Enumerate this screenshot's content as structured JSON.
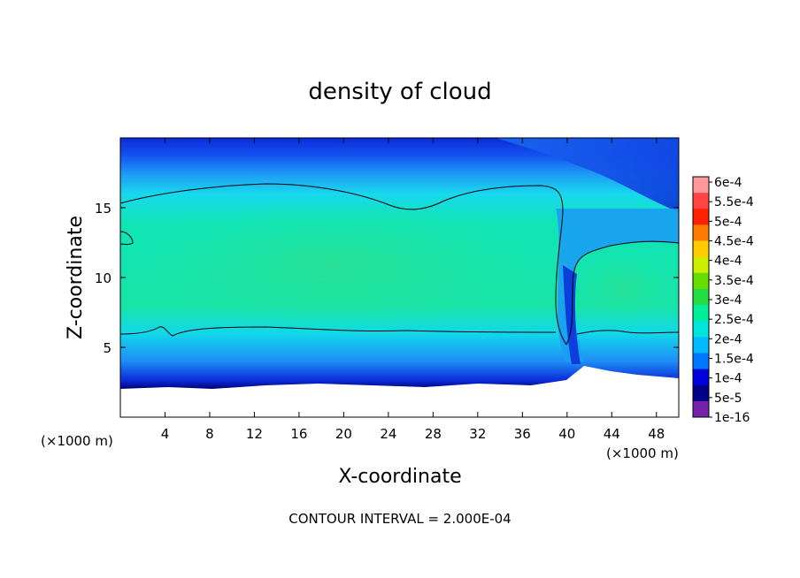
{
  "chart_data": {
    "type": "heatmap",
    "title": "density of cloud",
    "xlabel": "X-coordinate",
    "ylabel": "Z-coordinate",
    "x_unit": "(×1000 m)",
    "z_unit": "(×1000 m)",
    "xlim": [
      0,
      50
    ],
    "ylim": [
      0,
      20
    ],
    "x_ticks": [
      4,
      8,
      12,
      16,
      20,
      24,
      28,
      32,
      36,
      40,
      44,
      48
    ],
    "y_ticks": [
      5,
      10,
      15
    ],
    "contour_interval_text": "CONTOUR INTERVAL = 2.000E-04",
    "colorbar": {
      "labels": [
        "6e-4",
        "5.5e-4",
        "5e-4",
        "4.5e-4",
        "4e-4",
        "3.5e-4",
        "3e-4",
        "2.5e-4",
        "2e-4",
        "1.5e-4",
        "1e-4",
        "5e-5",
        "1e-16"
      ],
      "colors": [
        "#ff9999",
        "#ff4444",
        "#ff2200",
        "#ff7a00",
        "#ffcc00",
        "#ccee00",
        "#66dd00",
        "#22dd44",
        "#00ee99",
        "#00e5dd",
        "#00bbff",
        "#0077ff",
        "#0000dd",
        "#000088",
        "#7722aa"
      ]
    },
    "field_description_levels": {
      "cloud_base_km": 3,
      "cloud_core_value": "2.5e-4",
      "contour_level": "2e-4"
    }
  }
}
